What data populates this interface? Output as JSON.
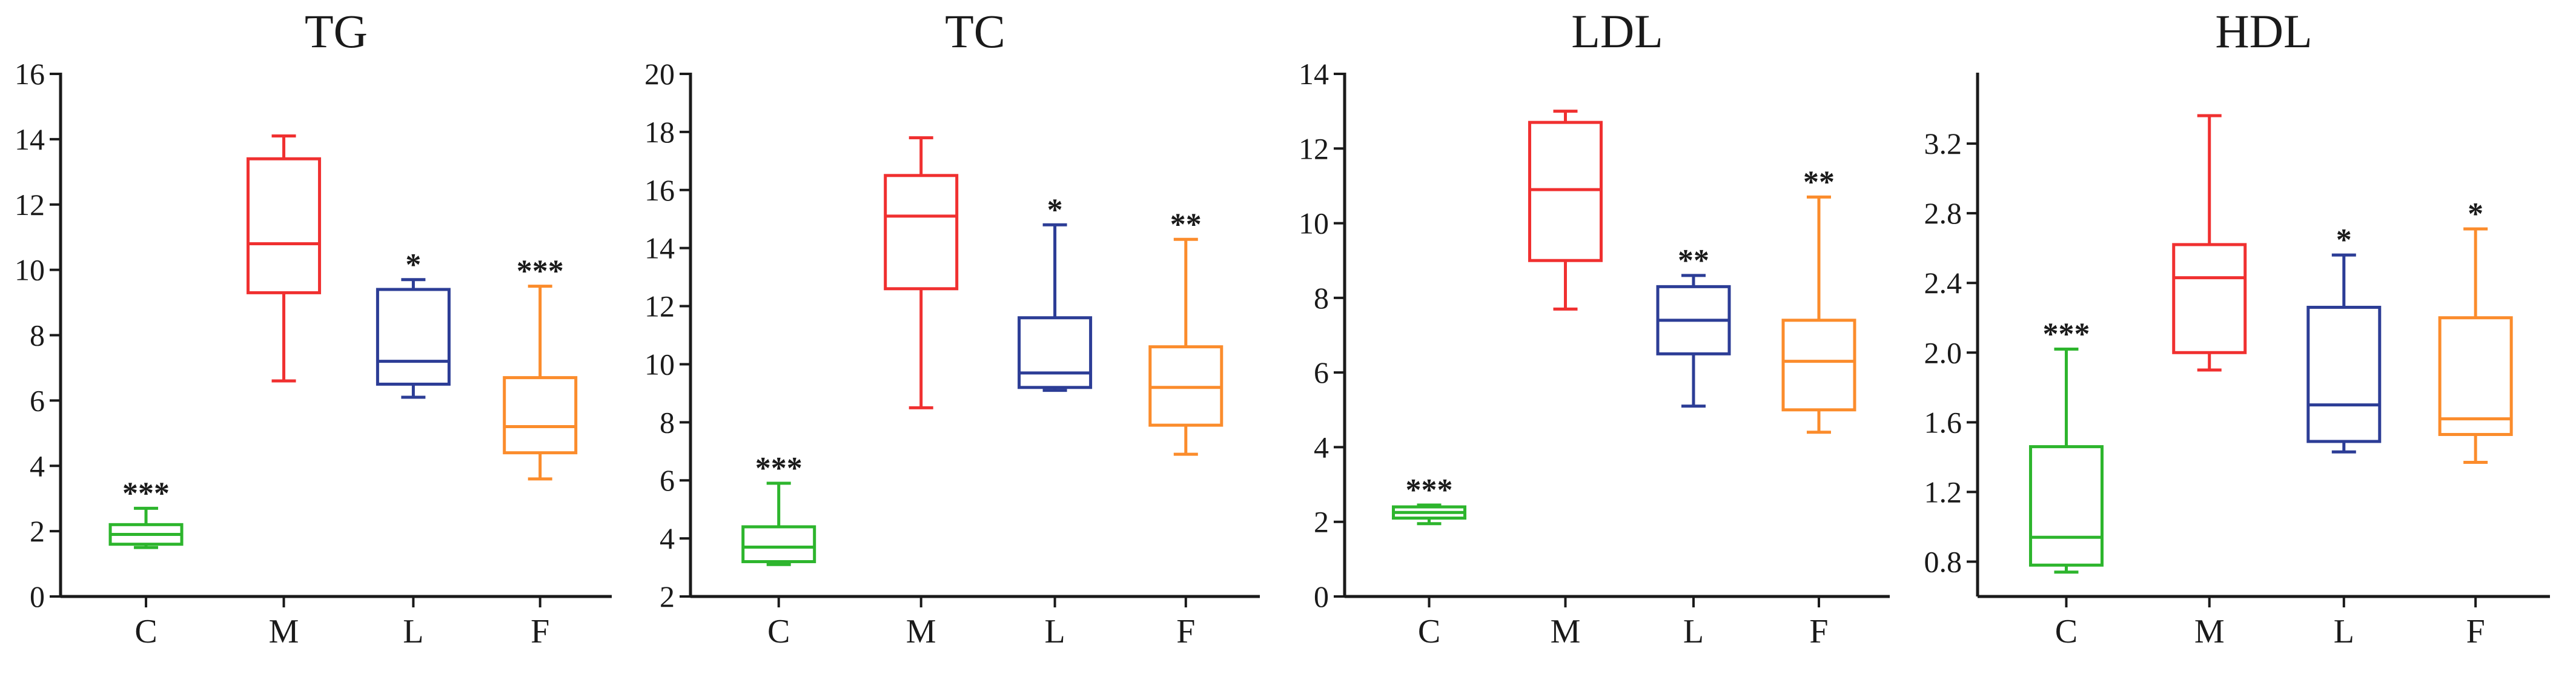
{
  "figure_colors": {
    "C": "#2db52d",
    "M": "#f03030",
    "L": "#2c3d96",
    "F": "#fb8c2c",
    "axis": "#1a1a1a"
  },
  "chart_data": [
    {
      "type": "box",
      "title": "TG",
      "xlabel": "",
      "ylabel": "",
      "ylim": [
        0,
        16
      ],
      "yticks": [
        0,
        2,
        4,
        6,
        8,
        10,
        12,
        14,
        16
      ],
      "ytick_labels": [
        "0",
        "2",
        "4",
        "6",
        "8",
        "10",
        "12",
        "14",
        "16"
      ],
      "categories": [
        "C",
        "M",
        "L",
        "F"
      ],
      "boxes": [
        {
          "category": "C",
          "min": 1.5,
          "q1": 1.6,
          "median": 1.9,
          "q3": 2.2,
          "max": 2.7,
          "sig": "***"
        },
        {
          "category": "M",
          "min": 6.6,
          "q1": 9.3,
          "median": 10.8,
          "q3": 13.4,
          "max": 14.1,
          "sig": ""
        },
        {
          "category": "L",
          "min": 6.1,
          "q1": 6.5,
          "median": 7.2,
          "q3": 9.4,
          "max": 9.7,
          "sig": "*"
        },
        {
          "category": "F",
          "min": 3.6,
          "q1": 4.4,
          "median": 5.2,
          "q3": 6.7,
          "max": 9.5,
          "sig": "***"
        }
      ]
    },
    {
      "type": "box",
      "title": "TC",
      "xlabel": "",
      "ylabel": "",
      "ylim": [
        2,
        20
      ],
      "yticks": [
        2,
        4,
        6,
        8,
        10,
        12,
        14,
        16,
        18,
        20
      ],
      "ytick_labels": [
        "2",
        "4",
        "6",
        "8",
        "10",
        "12",
        "14",
        "16",
        "18",
        "20"
      ],
      "categories": [
        "C",
        "M",
        "L",
        "F"
      ],
      "boxes": [
        {
          "category": "C",
          "min": 3.1,
          "q1": 3.2,
          "median": 3.7,
          "q3": 4.4,
          "max": 5.9,
          "sig": "***"
        },
        {
          "category": "M",
          "min": 8.5,
          "q1": 12.6,
          "median": 15.1,
          "q3": 16.5,
          "max": 17.8,
          "sig": ""
        },
        {
          "category": "L",
          "min": 9.1,
          "q1": 9.2,
          "median": 9.7,
          "q3": 11.6,
          "max": 14.8,
          "sig": "*"
        },
        {
          "category": "F",
          "min": 6.9,
          "q1": 7.9,
          "median": 9.2,
          "q3": 10.6,
          "max": 14.3,
          "sig": "**"
        }
      ]
    },
    {
      "type": "box",
      "title": "LDL",
      "xlabel": "",
      "ylabel": "",
      "ylim": [
        0,
        14
      ],
      "yticks": [
        0,
        2,
        4,
        6,
        8,
        10,
        12,
        14
      ],
      "ytick_labels": [
        "0",
        "2",
        "4",
        "6",
        "8",
        "10",
        "12",
        "14"
      ],
      "categories": [
        "C",
        "M",
        "L",
        "F"
      ],
      "boxes": [
        {
          "category": "C",
          "min": 1.95,
          "q1": 2.1,
          "median": 2.25,
          "q3": 2.4,
          "max": 2.45,
          "sig": "***"
        },
        {
          "category": "M",
          "min": 7.7,
          "q1": 9.0,
          "median": 10.9,
          "q3": 12.7,
          "max": 13.0,
          "sig": ""
        },
        {
          "category": "L",
          "min": 5.1,
          "q1": 6.5,
          "median": 7.4,
          "q3": 8.3,
          "max": 8.6,
          "sig": "**"
        },
        {
          "category": "F",
          "min": 4.4,
          "q1": 5.0,
          "median": 6.3,
          "q3": 7.4,
          "max": 10.7,
          "sig": "**"
        }
      ]
    },
    {
      "type": "box",
      "title": "HDL",
      "xlabel": "",
      "ylabel": "",
      "ylim": [
        0.6,
        3.6
      ],
      "yticks": [
        0.8,
        1.2,
        1.6,
        2.0,
        2.4,
        2.8,
        3.2
      ],
      "ytick_labels": [
        "0.8",
        "1.2",
        "1.6",
        "2.0",
        "2.4",
        "2.8",
        "3.2"
      ],
      "categories": [
        "C",
        "M",
        "L",
        "F"
      ],
      "boxes": [
        {
          "category": "C",
          "min": 0.74,
          "q1": 0.78,
          "median": 0.94,
          "q3": 1.46,
          "max": 2.02,
          "sig": "***"
        },
        {
          "category": "M",
          "min": 1.9,
          "q1": 2.0,
          "median": 2.43,
          "q3": 2.62,
          "max": 3.36,
          "sig": ""
        },
        {
          "category": "L",
          "min": 1.43,
          "q1": 1.49,
          "median": 1.7,
          "q3": 2.26,
          "max": 2.56,
          "sig": "*"
        },
        {
          "category": "F",
          "min": 1.37,
          "q1": 1.53,
          "median": 1.62,
          "q3": 2.2,
          "max": 2.71,
          "sig": "*"
        }
      ]
    }
  ]
}
